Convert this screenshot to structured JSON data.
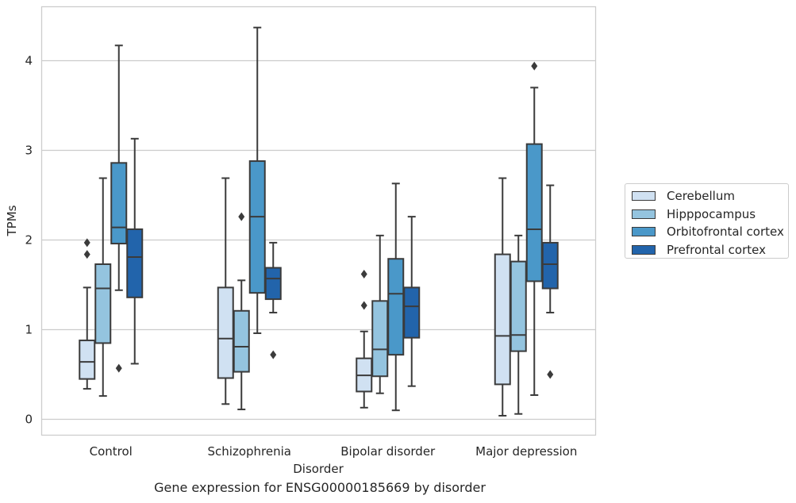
{
  "caption": "Gene expression for ENSG00000185669 by disorder",
  "chart_data": {
    "type": "box",
    "xlabel": "Disorder",
    "ylabel": "TPMs",
    "ylim": [
      -0.15,
      4.6
    ],
    "yticks": [
      0,
      1,
      2,
      3,
      4
    ],
    "grid": "horizontal",
    "legend_position": "right",
    "categories": [
      "Control",
      "Schizophrenia",
      "Bipolar disorder",
      "Major depression"
    ],
    "series": [
      {
        "name": "Cerebellum",
        "color": "#d0e1f2",
        "boxes": [
          {
            "min": 0.34,
            "q1": 0.45,
            "median": 0.64,
            "q3": 0.88,
            "max": 1.47,
            "outliers": [
              1.97,
              1.84
            ]
          },
          {
            "min": 0.17,
            "q1": 0.46,
            "median": 0.9,
            "q3": 1.47,
            "max": 2.69,
            "outliers": []
          },
          {
            "min": 0.13,
            "q1": 0.31,
            "median": 0.49,
            "q3": 0.68,
            "max": 0.98,
            "outliers": [
              1.62,
              1.27
            ]
          },
          {
            "min": 0.04,
            "q1": 0.39,
            "median": 0.93,
            "q3": 1.84,
            "max": 2.69,
            "outliers": []
          }
        ]
      },
      {
        "name": "Hipppocampus",
        "color": "#94c4df",
        "boxes": [
          {
            "min": 0.26,
            "q1": 0.85,
            "median": 1.46,
            "q3": 1.73,
            "max": 2.69,
            "outliers": []
          },
          {
            "min": 0.11,
            "q1": 0.53,
            "median": 0.81,
            "q3": 1.21,
            "max": 1.55,
            "outliers": [
              2.26
            ]
          },
          {
            "min": 0.29,
            "q1": 0.48,
            "median": 0.78,
            "q3": 1.32,
            "max": 2.05,
            "outliers": []
          },
          {
            "min": 0.06,
            "q1": 0.76,
            "median": 0.94,
            "q3": 1.76,
            "max": 2.05,
            "outliers": []
          }
        ]
      },
      {
        "name": "Orbitofrontal cortex",
        "color": "#4a98c9",
        "boxes": [
          {
            "min": 1.44,
            "q1": 1.96,
            "median": 2.14,
            "q3": 2.86,
            "max": 4.17,
            "outliers": [
              0.57
            ]
          },
          {
            "min": 0.96,
            "q1": 1.41,
            "median": 2.26,
            "q3": 2.88,
            "max": 4.37,
            "outliers": []
          },
          {
            "min": 0.1,
            "q1": 0.72,
            "median": 1.4,
            "q3": 1.79,
            "max": 2.63,
            "outliers": []
          },
          {
            "min": 0.27,
            "q1": 1.54,
            "median": 2.12,
            "q3": 3.07,
            "max": 3.7,
            "outliers": [
              3.94
            ]
          }
        ]
      },
      {
        "name": "Prefrontal cortex",
        "color": "#2264ab",
        "boxes": [
          {
            "min": 0.62,
            "q1": 1.36,
            "median": 1.81,
            "q3": 2.12,
            "max": 3.13,
            "outliers": []
          },
          {
            "min": 1.19,
            "q1": 1.34,
            "median": 1.57,
            "q3": 1.69,
            "max": 1.97,
            "outliers": [
              0.72
            ]
          },
          {
            "min": 0.37,
            "q1": 0.91,
            "median": 1.26,
            "q3": 1.47,
            "max": 2.26,
            "outliers": []
          },
          {
            "min": 1.19,
            "q1": 1.46,
            "median": 1.73,
            "q3": 1.97,
            "max": 2.61,
            "outliers": [
              0.5
            ]
          }
        ]
      }
    ]
  }
}
